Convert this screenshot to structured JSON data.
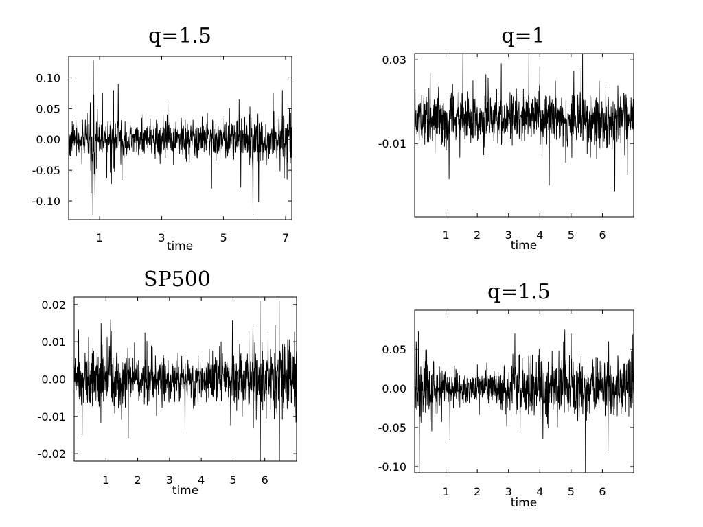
{
  "chart_data": [
    {
      "type": "line",
      "title": "q=1.5",
      "xlabel": "time",
      "ylabel": "",
      "xlim": [
        0,
        7.2
      ],
      "ylim": [
        -0.13,
        0.135
      ],
      "xticks": [
        1,
        3,
        5,
        7
      ],
      "yticks": [
        0.1,
        0.05,
        0.0,
        -0.05,
        -0.1
      ],
      "yticklabels": [
        "0.10",
        "0.05",
        "0.00",
        "-0.05",
        "-0.10"
      ],
      "grid": false,
      "series": [
        {
          "noise_base": 0.012,
          "x": [
            0.0,
            0.6,
            0.7,
            0.78,
            0.85,
            0.9,
            1.0,
            1.2,
            1.5,
            1.7,
            2.0,
            2.5,
            3.0,
            3.5,
            4.0,
            4.5,
            5.0,
            5.5,
            6.0,
            6.5,
            7.2
          ],
          "vol": [
            0.012,
            0.015,
            0.022,
            0.03,
            0.03,
            0.025,
            0.022,
            0.02,
            0.025,
            0.015,
            0.013,
            0.014,
            0.015,
            0.014,
            0.015,
            0.016,
            0.018,
            0.02,
            0.019,
            0.021,
            0.02
          ],
          "spikes": [
            {
              "x": 0.8,
              "y": 0.128
            },
            {
              "x": 0.78,
              "y": -0.122
            },
            {
              "x": 0.85,
              "y": -0.09
            },
            {
              "x": 0.7,
              "y": 0.06
            },
            {
              "x": 1.6,
              "y": 0.09
            },
            {
              "x": 1.45,
              "y": 0.08
            },
            {
              "x": 3.2,
              "y": 0.065
            },
            {
              "x": 5.5,
              "y": 0.065
            },
            {
              "x": 5.55,
              "y": -0.078
            },
            {
              "x": 6.9,
              "y": 0.08
            },
            {
              "x": 6.6,
              "y": 0.075
            },
            {
              "x": 7.05,
              "y": -0.065
            }
          ]
        }
      ]
    },
    {
      "type": "line",
      "title": "q=1",
      "xlabel": "time",
      "ylabel": "",
      "xlim": [
        0,
        7.0
      ],
      "ylim": [
        -0.045,
        0.033
      ],
      "xticks": [
        1,
        2,
        3,
        4,
        5,
        6
      ],
      "yticks": [
        0.03,
        -0.01
      ],
      "yticklabels": [
        "0.03",
        "-0.01"
      ],
      "grid": false,
      "series": [
        {
          "center": 0.002,
          "x": [
            0,
            1,
            2,
            3,
            4,
            5,
            6,
            7
          ],
          "vol": [
            0.006,
            0.006,
            0.006,
            0.006,
            0.006,
            0.006,
            0.006,
            0.006
          ],
          "spikes": [
            {
              "x": 4.0,
              "y": 0.027
            },
            {
              "x": 4.3,
              "y": -0.03
            },
            {
              "x": 6.4,
              "y": -0.033
            },
            {
              "x": 1.1,
              "y": -0.027
            },
            {
              "x": 0.5,
              "y": 0.024
            },
            {
              "x": 5.9,
              "y": 0.02
            },
            {
              "x": 6.8,
              "y": -0.025
            }
          ]
        }
      ]
    },
    {
      "type": "line",
      "title": "SP500",
      "xlabel": "time",
      "ylabel": "",
      "xlim": [
        0,
        7.0
      ],
      "ylim": [
        -0.022,
        0.022
      ],
      "xticks": [
        1,
        2,
        3,
        4,
        5,
        6
      ],
      "yticks": [
        0.02,
        0.01,
        0.0,
        -0.01,
        -0.02
      ],
      "yticklabels": [
        "0.02",
        "0.01",
        "0.00",
        "-0.01",
        "-0.02"
      ],
      "grid": false,
      "series": [
        {
          "x": [
            0,
            0.5,
            1.0,
            1.5,
            2.0,
            2.5,
            3.0,
            3.5,
            4.0,
            4.5,
            5.0,
            5.5,
            6.0,
            6.5,
            7.0
          ],
          "vol": [
            0.0035,
            0.004,
            0.0045,
            0.004,
            0.003,
            0.0028,
            0.0028,
            0.0028,
            0.003,
            0.0033,
            0.0038,
            0.0042,
            0.0046,
            0.0052,
            0.0055
          ],
          "spikes": [
            {
              "x": 5.85,
              "y": 0.021
            },
            {
              "x": 5.86,
              "y": -0.022
            },
            {
              "x": 6.45,
              "y": 0.021
            },
            {
              "x": 6.46,
              "y": -0.022
            },
            {
              "x": 1.15,
              "y": 0.016
            },
            {
              "x": 1.7,
              "y": -0.016
            },
            {
              "x": 0.25,
              "y": -0.015
            },
            {
              "x": 0.85,
              "y": 0.015
            },
            {
              "x": 6.1,
              "y": 0.012
            },
            {
              "x": 5.5,
              "y": 0.013
            }
          ]
        }
      ]
    },
    {
      "type": "line",
      "title": "q=1.5",
      "xlabel": "time",
      "ylabel": "",
      "xlim": [
        0,
        7.0
      ],
      "ylim": [
        -0.108,
        0.1
      ],
      "xticks": [
        1,
        2,
        3,
        4,
        5,
        6
      ],
      "yticks": [
        0.05,
        0.0,
        -0.05,
        -0.1
      ],
      "yticklabels": [
        "0.05",
        "0.00",
        "-0.05",
        "-0.10"
      ],
      "grid": false,
      "series": [
        {
          "x": [
            0,
            0.3,
            0.7,
            1.5,
            2.5,
            3.0,
            3.5,
            4.0,
            4.5,
            5.0,
            5.5,
            6.0,
            6.5,
            7.0
          ],
          "vol": [
            0.02,
            0.022,
            0.014,
            0.011,
            0.012,
            0.016,
            0.02,
            0.022,
            0.021,
            0.019,
            0.018,
            0.018,
            0.018,
            0.017
          ],
          "spikes": [
            {
              "x": 0.15,
              "y": -0.108
            },
            {
              "x": 0.12,
              "y": 0.073
            },
            {
              "x": 0.05,
              "y": 0.06
            },
            {
              "x": 3.2,
              "y": 0.07
            },
            {
              "x": 4.8,
              "y": 0.075
            },
            {
              "x": 5.0,
              "y": 0.07
            },
            {
              "x": 4.1,
              "y": -0.065
            },
            {
              "x": 6.2,
              "y": 0.06
            },
            {
              "x": 0.55,
              "y": -0.055
            }
          ]
        }
      ]
    }
  ]
}
